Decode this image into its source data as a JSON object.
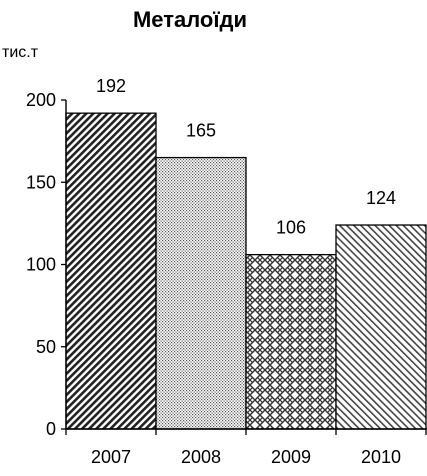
{
  "chart_data": {
    "type": "bar",
    "title": "Металоїди",
    "ylabel": "тис.т",
    "xlabel": "",
    "categories": [
      "2007",
      "2008",
      "2009",
      "2010"
    ],
    "values": [
      192,
      165,
      106,
      124
    ],
    "data_labels": [
      "192",
      "165",
      "106",
      "124"
    ],
    "ylim": [
      0,
      200
    ],
    "yticks": [
      0,
      50,
      100,
      150,
      200
    ],
    "ytick_labels": [
      "0",
      "50",
      "100",
      "150",
      "200"
    ],
    "bar_patterns": [
      "dense-diagonal",
      "dots",
      "crosshatch-zigzag",
      "fine-diagonal"
    ],
    "grid": false,
    "legend": "none"
  }
}
